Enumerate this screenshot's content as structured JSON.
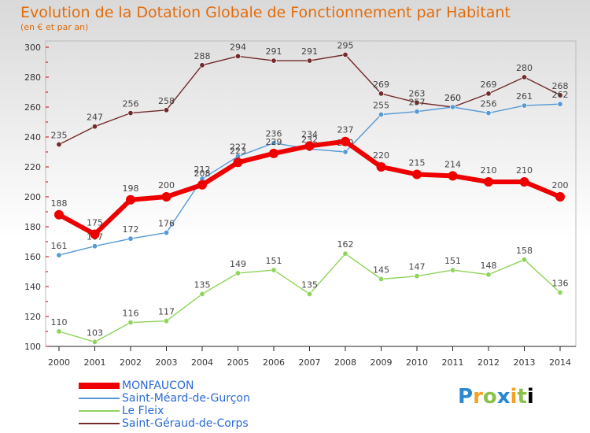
{
  "header": {
    "title": "Evolution de la Dotation Globale de Fonctionnement par Habitant",
    "subtitle": "(en € et par an)"
  },
  "brand": {
    "text": "Proxiti"
  },
  "chart_data": {
    "type": "line",
    "title": "Evolution de la Dotation Globale de Fonctionnement par Habitant",
    "subtitle": "(en € et par an)",
    "xlabel": "",
    "ylabel": "",
    "categories": [
      "2000",
      "2001",
      "2002",
      "2003",
      "2004",
      "2005",
      "2006",
      "2007",
      "2008",
      "2009",
      "2010",
      "2011",
      "2012",
      "2013",
      "2014"
    ],
    "ylim": [
      100,
      300
    ],
    "yticks": [
      100,
      120,
      140,
      160,
      180,
      200,
      220,
      240,
      260,
      280,
      300
    ],
    "grid": false,
    "legend_position": "bottom-left",
    "series": [
      {
        "name": "Saint-Géraud-de-Corps",
        "color": "#722a2a",
        "values": [
          235,
          247,
          256,
          258,
          288,
          294,
          291,
          291,
          295,
          269,
          263,
          260,
          269,
          280,
          268
        ]
      },
      {
        "name": "Le Fleix",
        "color": "#8fd45a",
        "values": [
          110,
          103,
          116,
          117,
          135,
          149,
          151,
          135,
          162,
          145,
          147,
          151,
          148,
          158,
          136
        ]
      },
      {
        "name": "Saint-Méard-de-Gurçon",
        "color": "#5599d6",
        "values": [
          161,
          167,
          172,
          176,
          212,
          227,
          236,
          232,
          230,
          255,
          257,
          260,
          256,
          261,
          262
        ]
      },
      {
        "name": "MONFAUCON",
        "color": "#ee0000",
        "values": [
          188,
          175,
          198,
          200,
          208,
          223,
          229,
          234,
          237,
          220,
          215,
          214,
          210,
          210,
          200
        ]
      }
    ],
    "legend_order": [
      "MONFAUCON",
      "Saint-Méard-de-Gurçon",
      "Le Fleix",
      "Saint-Géraud-de-Corps"
    ]
  }
}
